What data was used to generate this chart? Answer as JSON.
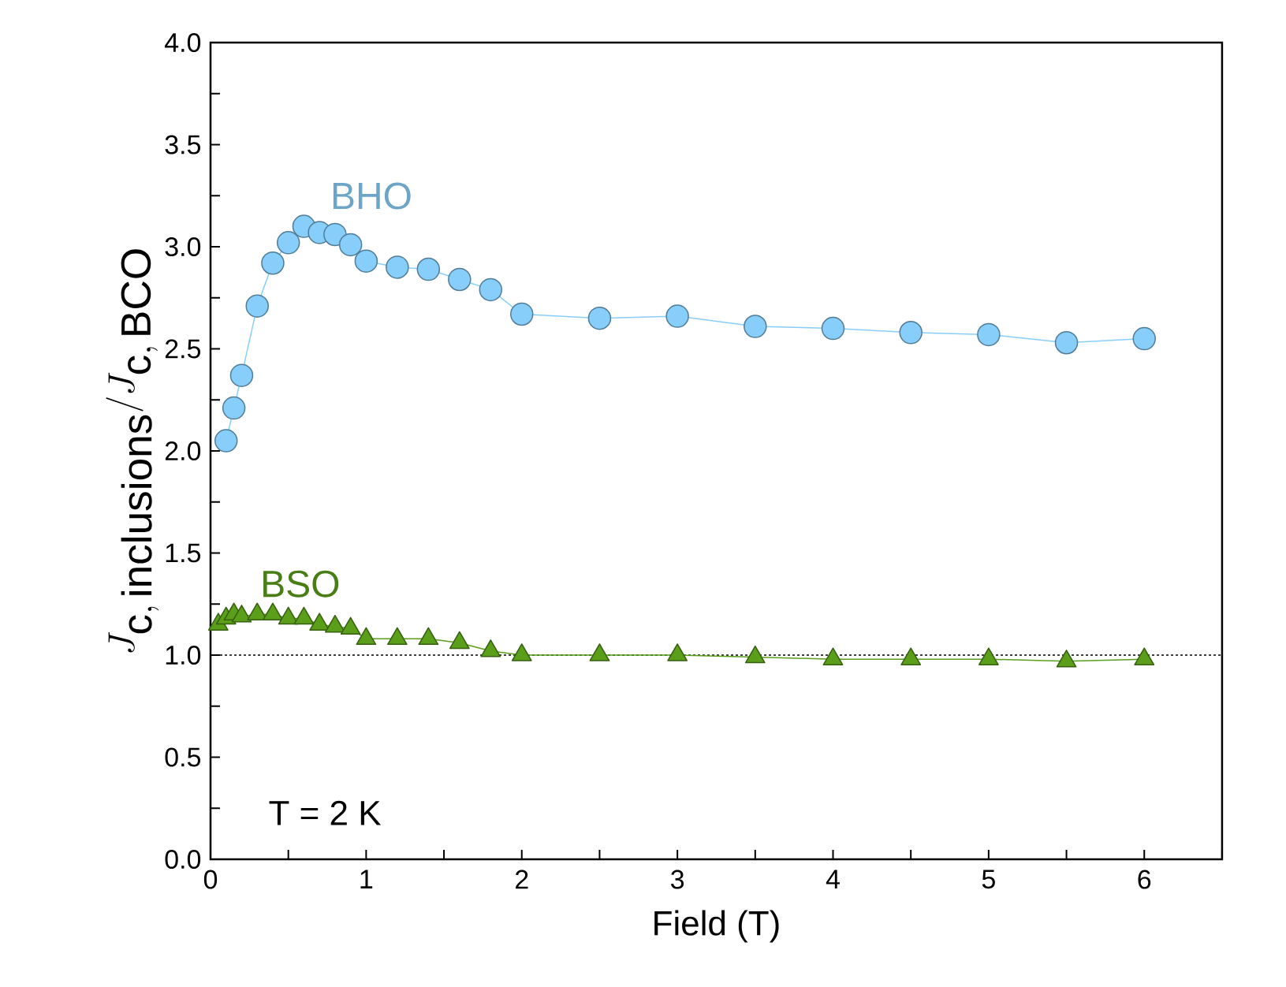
{
  "chart_data": {
    "type": "line",
    "xlabel": "Field (T)",
    "ylabel": "J_{\\mathrm{c,\\,inclusions}}/J_{\\mathrm{c,\\,BCO}}",
    "xlim": [
      0,
      6.5
    ],
    "ylim": [
      0,
      4
    ],
    "xticks": [
      0,
      {
        "value": 0.5,
        "label": null
      },
      1,
      {
        "value": 1.5,
        "label": null
      },
      2,
      {
        "value": 2.5,
        "label": null
      },
      3,
      {
        "value": 3.5,
        "label": null
      },
      4,
      {
        "value": 4.5,
        "label": null
      },
      5,
      {
        "value": 5.5,
        "label": null
      },
      6,
      {
        "value": 6.5,
        "label": null
      }
    ],
    "yticks": [
      {
        "value": 0,
        "label": "0.0"
      },
      {
        "value": 0.25,
        "label": null
      },
      {
        "value": 0.5,
        "label": "0.5"
      },
      {
        "value": 0.75,
        "label": null
      },
      {
        "value": 1,
        "label": "1.0"
      },
      {
        "value": 1.25,
        "label": null
      },
      {
        "value": 1.5,
        "label": "1.5"
      },
      {
        "value": 1.75,
        "label": null
      },
      {
        "value": 2,
        "label": "2.0"
      },
      {
        "value": 2.25,
        "label": null
      },
      {
        "value": 2.5,
        "label": "2.5"
      },
      {
        "value": 2.75,
        "label": null
      },
      {
        "value": 3,
        "label": "3.0"
      },
      {
        "value": 3.25,
        "label": null
      },
      {
        "value": 3.5,
        "label": "3.5"
      },
      {
        "value": 3.75,
        "label": null
      },
      {
        "value": 4,
        "label": "4.0"
      }
    ],
    "series": [
      {
        "name": "BHO",
        "color": "#87cefa",
        "marker": "circle",
        "x": [
          0.1,
          0.15,
          0.2,
          0.3,
          0.4,
          0.5,
          0.6,
          0.7,
          0.8,
          0.9,
          1.0,
          1.2,
          1.4,
          1.6,
          1.8,
          2.0,
          2.5,
          3.0,
          3.5,
          4.0,
          4.5,
          5.0,
          5.5,
          6.0
        ],
        "values": [
          2.05,
          2.21,
          2.37,
          2.71,
          2.92,
          3.02,
          3.1,
          3.07,
          3.06,
          3.01,
          2.93,
          2.9,
          2.89,
          2.84,
          2.79,
          2.67,
          2.65,
          2.66,
          2.61,
          2.6,
          2.58,
          2.57,
          2.53,
          2.55
        ]
      },
      {
        "name": "BSO",
        "color": "#5a9e1a",
        "marker": "triangle",
        "x": [
          0.05,
          0.1,
          0.15,
          0.2,
          0.3,
          0.4,
          0.5,
          0.6,
          0.7,
          0.8,
          0.9,
          1.0,
          1.2,
          1.4,
          1.6,
          1.8,
          2.0,
          2.5,
          3.0,
          3.5,
          4.0,
          4.5,
          5.0,
          5.5,
          6.0
        ],
        "values": [
          1.15,
          1.18,
          1.2,
          1.19,
          1.2,
          1.2,
          1.18,
          1.18,
          1.15,
          1.14,
          1.13,
          1.08,
          1.08,
          1.08,
          1.06,
          1.02,
          1.0,
          1.0,
          1.0,
          0.99,
          0.98,
          0.98,
          0.98,
          0.97,
          0.98
        ]
      }
    ],
    "ref_lines": [
      {
        "axis": "y",
        "value": 1,
        "line_style": "dashed",
        "color": "#000000"
      }
    ],
    "annotations": [
      {
        "text": "T = 2 K"
      }
    ],
    "grid": false
  }
}
